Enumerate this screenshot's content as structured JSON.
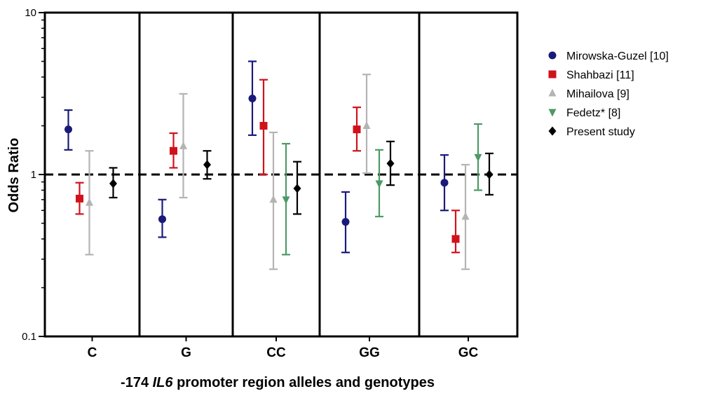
{
  "chart_data": {
    "type": "scatter",
    "y_scale": "log",
    "ylabel": "Odds Ratio",
    "xlabel_parts": [
      "-174 ",
      "IL6",
      " promoter region alleles and genotypes"
    ],
    "ylim": [
      0.1,
      10
    ],
    "y_ticks": [
      {
        "value": 0.1,
        "label": "0.1"
      },
      {
        "value": 1,
        "label": "1"
      },
      {
        "value": 10,
        "label": "10"
      }
    ],
    "reference_line": 1,
    "categories": [
      "C",
      "G",
      "CC",
      "GG",
      "GC"
    ],
    "legend_position": "right",
    "series": [
      {
        "name": "Mirowska-Guzel [10]",
        "color": "#1a1a7a",
        "marker": "circle",
        "points": [
          {
            "category": "C",
            "or": 1.9,
            "lo": 1.42,
            "hi": 2.5
          },
          {
            "category": "G",
            "or": 0.53,
            "lo": 0.41,
            "hi": 0.7
          },
          {
            "category": "CC",
            "or": 2.95,
            "lo": 1.75,
            "hi": 5.0
          },
          {
            "category": "GG",
            "or": 0.51,
            "lo": 0.33,
            "hi": 0.78
          },
          {
            "category": "GC",
            "or": 0.89,
            "lo": 0.6,
            "hi": 1.32
          }
        ]
      },
      {
        "name": "Shahbazi [11]",
        "color": "#d0121b",
        "marker": "square",
        "points": [
          {
            "category": "C",
            "or": 0.71,
            "lo": 0.57,
            "hi": 0.89
          },
          {
            "category": "G",
            "or": 1.4,
            "lo": 1.1,
            "hi": 1.8
          },
          {
            "category": "CC",
            "or": 2.0,
            "lo": 1.0,
            "hi": 3.85
          },
          {
            "category": "GG",
            "or": 1.9,
            "lo": 1.4,
            "hi": 2.6
          },
          {
            "category": "GC",
            "or": 0.4,
            "lo": 0.33,
            "hi": 0.6
          }
        ]
      },
      {
        "name": "Mihailova [9]",
        "color": "#b4b4b4",
        "marker": "triangle-up",
        "points": [
          {
            "category": "C",
            "or": 0.67,
            "lo": 0.32,
            "hi": 1.4
          },
          {
            "category": "G",
            "or": 1.5,
            "lo": 0.72,
            "hi": 3.15
          },
          {
            "category": "CC",
            "or": 0.7,
            "lo": 0.26,
            "hi": 1.82
          },
          {
            "category": "GG",
            "or": 2.0,
            "lo": 1.02,
            "hi": 4.15
          },
          {
            "category": "GC",
            "or": 0.55,
            "lo": 0.26,
            "hi": 1.15
          }
        ]
      },
      {
        "name": "Fedetz* [8]",
        "color": "#4d9a64",
        "marker": "triangle-down",
        "points": [
          {
            "category": "CC",
            "or": 0.7,
            "lo": 0.32,
            "hi": 1.55
          },
          {
            "category": "GG",
            "or": 0.88,
            "lo": 0.55,
            "hi": 1.42
          },
          {
            "category": "GC",
            "or": 1.28,
            "lo": 0.8,
            "hi": 2.05
          }
        ]
      },
      {
        "name": "Present study",
        "color": "#000000",
        "marker": "diamond",
        "points": [
          {
            "category": "C",
            "or": 0.88,
            "lo": 0.72,
            "hi": 1.1
          },
          {
            "category": "G",
            "or": 1.15,
            "lo": 0.94,
            "hi": 1.4
          },
          {
            "category": "CC",
            "or": 0.82,
            "lo": 0.57,
            "hi": 1.2
          },
          {
            "category": "GG",
            "or": 1.17,
            "lo": 0.86,
            "hi": 1.6
          },
          {
            "category": "GC",
            "or": 1.0,
            "lo": 0.75,
            "hi": 1.35
          }
        ]
      }
    ]
  }
}
